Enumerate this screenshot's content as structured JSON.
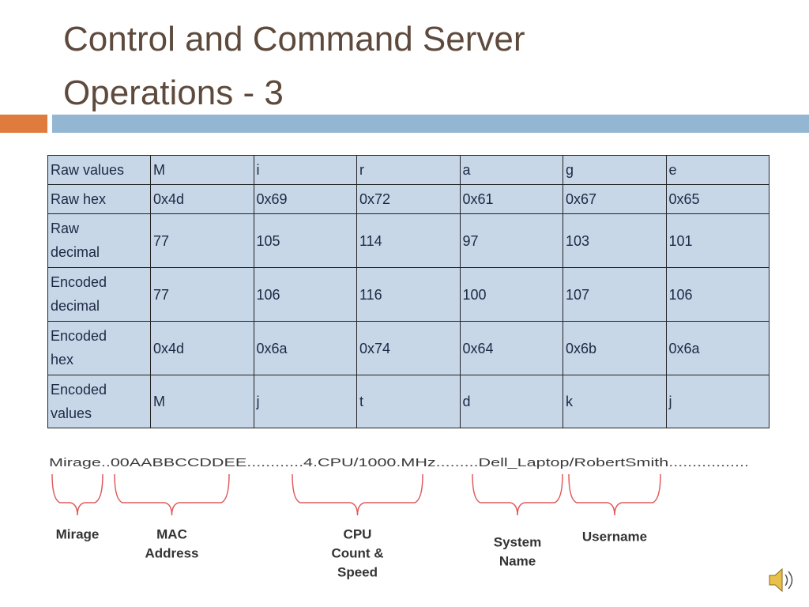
{
  "title": "Control and Command Server Operations - 3",
  "table": {
    "rows": [
      [
        "Raw values",
        "M",
        "i",
        "r",
        "a",
        "g",
        "e"
      ],
      [
        "Raw hex",
        "0x4d",
        "0x69",
        "0x72",
        "0x61",
        "0x67",
        "0x65"
      ],
      [
        "Raw decimal",
        "77",
        "105",
        "114",
        "97",
        "103",
        "101"
      ],
      [
        "Encoded decimal",
        "77",
        "106",
        "116",
        "100",
        "107",
        "106"
      ],
      [
        "Encoded hex",
        "0x4d",
        "0x6a",
        "0x74",
        "0x64",
        "0x6b",
        "0x6a"
      ],
      [
        "Encoded values",
        "M",
        "j",
        "t",
        "d",
        "k",
        "j"
      ]
    ]
  },
  "diagram": {
    "string": "Mirage..00AABBCCDDEE............4.CPU/1000.MHz.........Dell_Laptop/RobertSmith.................",
    "labels": [
      [
        "Mirage"
      ],
      [
        "MAC",
        "Address"
      ],
      [
        "CPU",
        "Count &",
        "Speed"
      ],
      [
        "System",
        "Name"
      ],
      [
        "Username"
      ]
    ]
  }
}
